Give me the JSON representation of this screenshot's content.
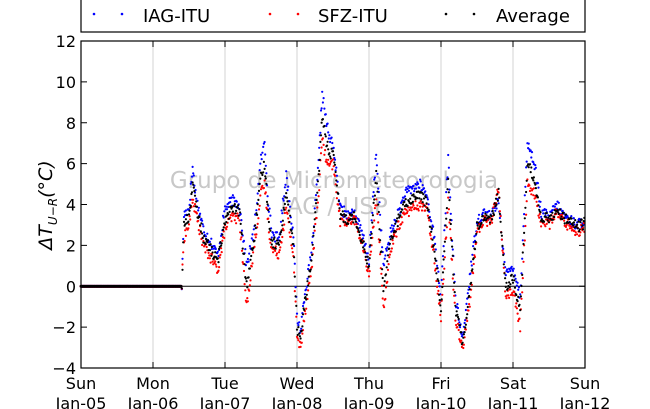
{
  "chart_data": {
    "type": "scatter",
    "title": "",
    "xlabel": "",
    "ylabel": "ΔT_{U-R}(°C)",
    "ylabel_main": "ΔT",
    "ylabel_sub": "U−R",
    "ylabel_tail": "(°C)",
    "ylim": [
      -4,
      12
    ],
    "yticks": [
      -4,
      -2,
      0,
      2,
      4,
      6,
      8,
      10,
      12
    ],
    "xlim_days": [
      0,
      7
    ],
    "x_ticks": [
      {
        "day": "Sun",
        "date": "Jan-05"
      },
      {
        "day": "Mon",
        "date": "Jan-06"
      },
      {
        "day": "Tue",
        "date": "Jan-07"
      },
      {
        "day": "Wed",
        "date": "Jan-08"
      },
      {
        "day": "Thu",
        "date": "Jan-09"
      },
      {
        "day": "Fri",
        "date": "Jan-10"
      },
      {
        "day": "Sat",
        "date": "Jan-11"
      },
      {
        "day": "Sun",
        "date": "Jan-12"
      }
    ],
    "vertical_grid": true,
    "zero_line": true,
    "legend_position": "top",
    "watermark_line1": "Grupo de Micrometeorologia",
    "watermark_line2": "IAG / USP",
    "series": [
      {
        "name": "IAG-ITU",
        "color": "#0000ff",
        "x": [
          0.0,
          0.5,
          1.0,
          1.4,
          1.43,
          1.5,
          1.55,
          1.6,
          1.7,
          1.8,
          1.9,
          2.0,
          2.1,
          2.2,
          2.3,
          2.4,
          2.5,
          2.55,
          2.6,
          2.65,
          2.75,
          2.85,
          2.95,
          3.0,
          3.05,
          3.1,
          3.2,
          3.3,
          3.35,
          3.4,
          3.45,
          3.5,
          3.6,
          3.7,
          3.8,
          3.9,
          4.0,
          4.1,
          4.2,
          4.3,
          4.4,
          4.5,
          4.6,
          4.7,
          4.8,
          4.9,
          5.0,
          5.1,
          5.2,
          5.3,
          5.4,
          5.5,
          5.6,
          5.65,
          5.7,
          5.8,
          5.9,
          6.0,
          6.1,
          6.2,
          6.3,
          6.4,
          6.45,
          6.5,
          6.6,
          6.7,
          6.8,
          6.9,
          7.0
        ],
        "values": [
          0.0,
          0.0,
          0.0,
          0.0,
          3.5,
          3.8,
          5.8,
          4.3,
          2.8,
          2.2,
          1.5,
          3.8,
          4.2,
          4.0,
          1.0,
          2.6,
          6.2,
          7.0,
          4.2,
          2.6,
          2.3,
          5.5,
          2.5,
          -1.5,
          -2.2,
          -0.5,
          1.5,
          6.0,
          9.5,
          8.2,
          7.2,
          7.0,
          3.8,
          3.5,
          3.6,
          2.6,
          1.3,
          6.5,
          1.0,
          2.6,
          3.5,
          4.5,
          4.8,
          5.0,
          4.5,
          2.5,
          -0.5,
          6.2,
          -0.6,
          -2.6,
          0.5,
          3.2,
          3.6,
          3.5,
          3.4,
          4.2,
          0.5,
          1.0,
          -0.5,
          7.0,
          6.0,
          3.4,
          3.6,
          3.3,
          4.0,
          3.5,
          3.2,
          3.0,
          3.3
        ]
      },
      {
        "name": "SFZ-ITU",
        "color": "#ff0000",
        "x": [
          0.0,
          0.5,
          1.0,
          1.4,
          1.43,
          1.5,
          1.55,
          1.6,
          1.7,
          1.8,
          1.9,
          2.0,
          2.1,
          2.2,
          2.3,
          2.4,
          2.5,
          2.55,
          2.6,
          2.65,
          2.75,
          2.85,
          2.95,
          3.0,
          3.05,
          3.1,
          3.2,
          3.3,
          3.35,
          3.4,
          3.45,
          3.5,
          3.6,
          3.7,
          3.8,
          3.9,
          4.0,
          4.1,
          4.2,
          4.3,
          4.4,
          4.5,
          4.6,
          4.7,
          4.8,
          4.9,
          5.0,
          5.1,
          5.2,
          5.3,
          5.4,
          5.5,
          5.6,
          5.65,
          5.7,
          5.8,
          5.9,
          6.0,
          6.1,
          6.2,
          6.3,
          6.4,
          6.45,
          6.5,
          6.6,
          6.7,
          6.8,
          6.9,
          7.0
        ],
        "values": [
          0.0,
          0.0,
          0.0,
          0.0,
          2.4,
          3.0,
          4.3,
          3.5,
          2.0,
          1.4,
          0.8,
          2.8,
          3.4,
          3.3,
          -1.0,
          1.8,
          4.5,
          5.0,
          3.1,
          1.8,
          1.6,
          3.8,
          1.5,
          -2.5,
          -3.0,
          -1.5,
          0.8,
          4.5,
          7.3,
          6.2,
          5.8,
          6.0,
          3.2,
          3.2,
          3.3,
          2.1,
          0.6,
          4.5,
          -1.2,
          1.8,
          2.9,
          3.6,
          3.8,
          4.0,
          3.8,
          1.6,
          -1.5,
          4.2,
          -1.5,
          -3.0,
          -0.8,
          2.6,
          3.3,
          3.2,
          3.2,
          4.8,
          -0.5,
          -0.2,
          -2.0,
          5.0,
          4.5,
          3.0,
          3.2,
          3.0,
          3.6,
          3.2,
          2.9,
          2.7,
          2.9
        ]
      },
      {
        "name": "Average",
        "color": "#000000",
        "x": [
          0.0,
          0.5,
          1.0,
          1.4,
          1.43,
          1.5,
          1.55,
          1.6,
          1.7,
          1.8,
          1.9,
          2.0,
          2.1,
          2.2,
          2.3,
          2.4,
          2.5,
          2.55,
          2.6,
          2.65,
          2.75,
          2.85,
          2.95,
          3.0,
          3.05,
          3.1,
          3.2,
          3.3,
          3.35,
          3.4,
          3.45,
          3.5,
          3.6,
          3.7,
          3.8,
          3.9,
          4.0,
          4.1,
          4.2,
          4.3,
          4.4,
          4.5,
          4.6,
          4.7,
          4.8,
          4.9,
          5.0,
          5.1,
          5.2,
          5.3,
          5.4,
          5.5,
          5.6,
          5.65,
          5.7,
          5.8,
          5.9,
          6.0,
          6.1,
          6.2,
          6.3,
          6.4,
          6.45,
          6.5,
          6.6,
          6.7,
          6.8,
          6.9,
          7.0
        ],
        "values": [
          0.0,
          0.0,
          0.0,
          0.0,
          3.0,
          3.4,
          5.0,
          3.9,
          2.4,
          1.8,
          1.2,
          3.3,
          3.8,
          3.7,
          0.0,
          2.2,
          5.3,
          6.0,
          3.6,
          2.2,
          2.0,
          4.6,
          2.0,
          -2.0,
          -2.6,
          -1.0,
          1.2,
          5.3,
          8.4,
          7.2,
          6.5,
          6.5,
          3.5,
          3.3,
          3.4,
          2.3,
          1.0,
          5.5,
          -0.1,
          2.2,
          3.2,
          4.0,
          4.3,
          4.5,
          4.1,
          2.0,
          -1.0,
          5.2,
          -1.0,
          -2.8,
          -0.2,
          2.9,
          3.4,
          3.4,
          3.3,
          4.5,
          0.0,
          0.4,
          -1.2,
          6.0,
          5.2,
          3.2,
          3.4,
          3.2,
          3.8,
          3.4,
          3.1,
          2.9,
          3.1
        ]
      }
    ]
  }
}
